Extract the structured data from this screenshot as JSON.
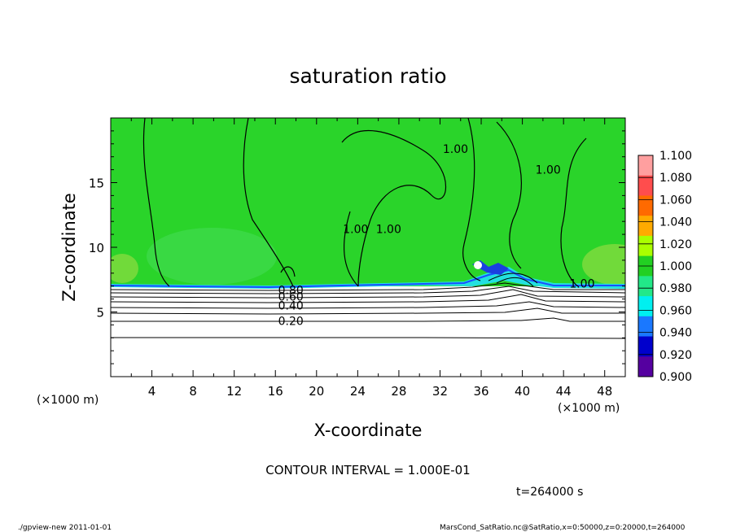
{
  "chart_data": {
    "type": "heatmap",
    "title": "saturation ratio",
    "xlabel": "X-coordinate",
    "ylabel": "Z-coordinate",
    "x_unit_left": "(×1000 m)",
    "x_unit_right": "(×1000 m)",
    "x_ticks": [
      4,
      8,
      12,
      16,
      20,
      24,
      28,
      32,
      36,
      40,
      44,
      48
    ],
    "y_ticks": [
      5,
      10,
      15
    ],
    "xlim": [
      0,
      50
    ],
    "ylim": [
      0,
      20
    ],
    "colorbar": {
      "levels": [
        "1.100",
        "1.080",
        "1.060",
        "1.040",
        "1.020",
        "1.000",
        "0.980",
        "0.960",
        "0.940",
        "0.920",
        "0.900"
      ],
      "colors": [
        "#ff9f9f",
        "#ff4d4d",
        "#ff6a00",
        "#ffaa00",
        "#aaff00",
        "#22d022",
        "#22e888",
        "#00f0f0",
        "#1a78ff",
        "#0000cc",
        "#5500a0"
      ]
    },
    "contour_labels": [
      {
        "text": "1.00",
        "x": 33.5,
        "y": 17.6
      },
      {
        "text": "1.00",
        "x": 42.5,
        "y": 16.0
      },
      {
        "text": "1.00",
        "x": 23.8,
        "y": 11.4
      },
      {
        "text": "1.00",
        "x": 27.0,
        "y": 11.4
      },
      {
        "text": "1.00",
        "x": 45.8,
        "y": 7.2
      },
      {
        "text": "0.80",
        "x": 17.5,
        "y": 6.7
      },
      {
        "text": "0.60",
        "x": 17.5,
        "y": 6.2
      },
      {
        "text": "0.40",
        "x": 17.5,
        "y": 5.5
      },
      {
        "text": "0.20",
        "x": 17.5,
        "y": 4.3
      }
    ],
    "contour_interval_text": "CONTOUR INTERVAL = 1.000E-01",
    "time_text": "t=264000 s",
    "footer_left": "./gpview-new   2011-01-01",
    "footer_right": "MarsCond_SatRatio.nc@SatRatio,x=0:50000,z=0:20000,t=264000"
  }
}
